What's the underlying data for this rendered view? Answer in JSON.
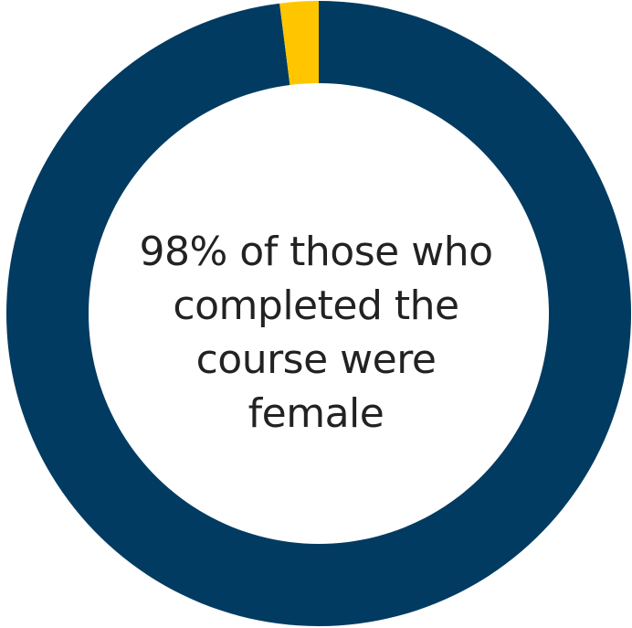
{
  "chart_data": {
    "type": "pie",
    "variant": "donut",
    "slices": [
      {
        "label": "",
        "value": 98,
        "color": "#023b61"
      },
      {
        "label": "",
        "value": 2,
        "color": "#ffc600"
      }
    ],
    "center_text_lines": [
      "98% of those who",
      "completed the",
      "course were",
      "female"
    ]
  }
}
